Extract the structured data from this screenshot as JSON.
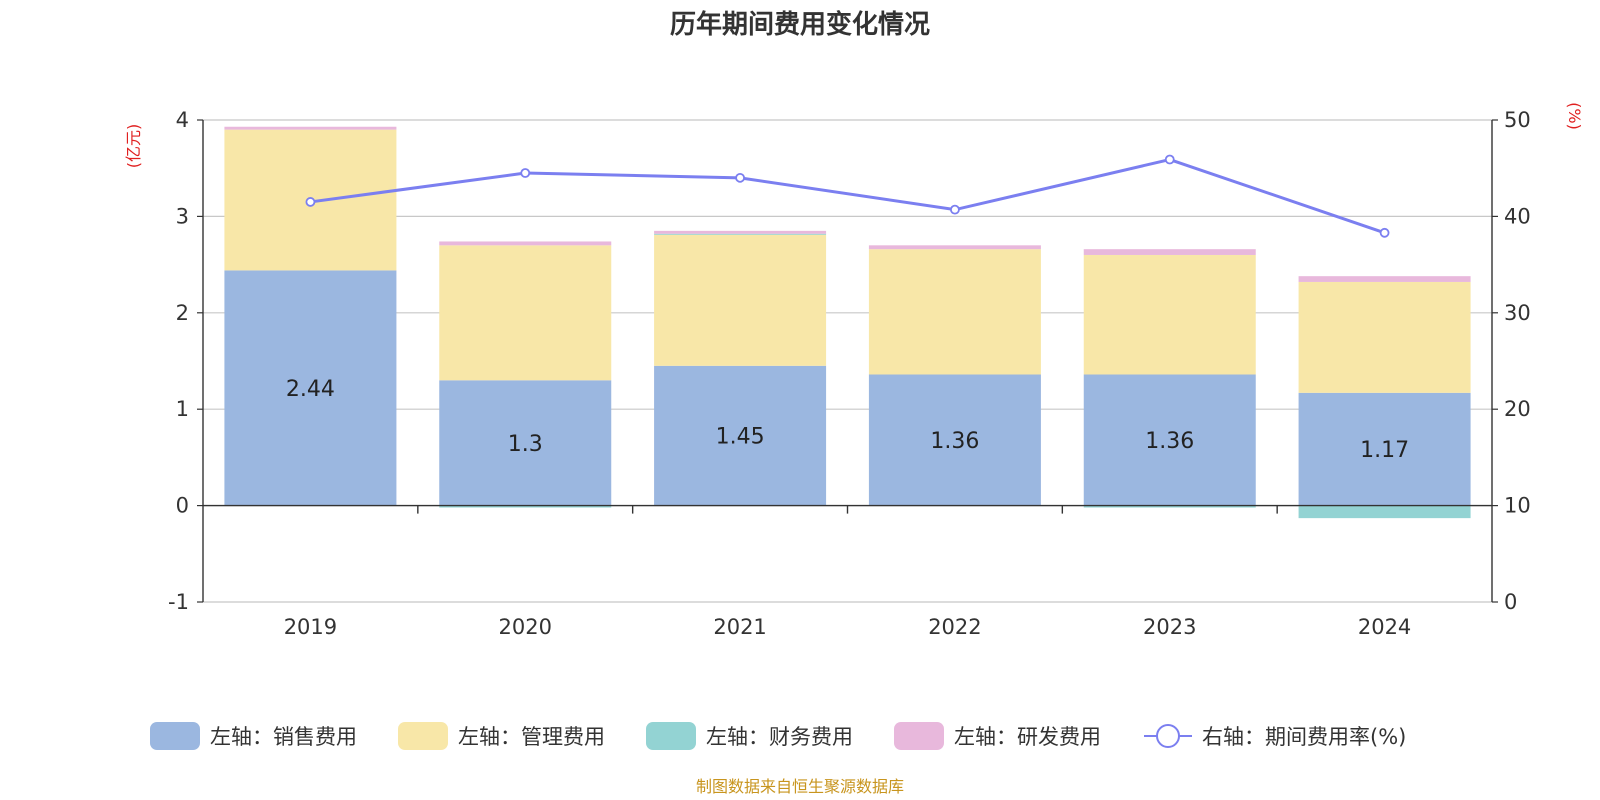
{
  "chart_data": {
    "type": "bar",
    "stacked": true,
    "title": "历年期间费用变化情况",
    "categories": [
      "2019",
      "2020",
      "2021",
      "2022",
      "2023",
      "2024"
    ],
    "left_axis": {
      "unit": "(亿元)",
      "ylim": [
        -1,
        4
      ],
      "ticks": [
        -1,
        0,
        1,
        2,
        3,
        4
      ],
      "tick_labels": [
        "-1",
        "0",
        "1",
        "2",
        "3",
        "4"
      ]
    },
    "right_axis": {
      "unit": "(%)",
      "ylim": [
        0,
        50
      ],
      "ticks": [
        0,
        10,
        20,
        30,
        40,
        50
      ],
      "tick_labels": [
        "0",
        "10",
        "20",
        "30",
        "40",
        "50"
      ]
    },
    "series": [
      {
        "name": "左轴：销售费用",
        "axis": "left",
        "color": "#9bb7e0",
        "values": [
          2.44,
          1.3,
          1.45,
          1.36,
          1.36,
          1.17
        ],
        "labels": [
          "2.44",
          "1.3",
          "1.45",
          "1.36",
          "1.36",
          "1.17"
        ]
      },
      {
        "name": "左轴：管理费用",
        "axis": "left",
        "color": "#f8e7a8",
        "values": [
          1.46,
          1.4,
          1.36,
          1.3,
          1.24,
          1.15
        ]
      },
      {
        "name": "左轴：财务费用",
        "axis": "left",
        "color": "#93d3d3",
        "values": [
          0.0,
          -0.02,
          0.01,
          0.0,
          -0.02,
          -0.13
        ]
      },
      {
        "name": "左轴：研发费用",
        "axis": "left",
        "color": "#e8b8dc",
        "values": [
          0.03,
          0.04,
          0.03,
          0.04,
          0.06,
          0.06
        ]
      }
    ],
    "line": {
      "name": "右轴：期间费用率(%)",
      "axis": "right",
      "color": "#7b7ff0",
      "values": [
        41.5,
        44.5,
        44.0,
        40.7,
        45.9,
        38.3
      ]
    },
    "legend_position": "bottom",
    "grid": true
  },
  "source": "制图数据来自恒生聚源数据库"
}
